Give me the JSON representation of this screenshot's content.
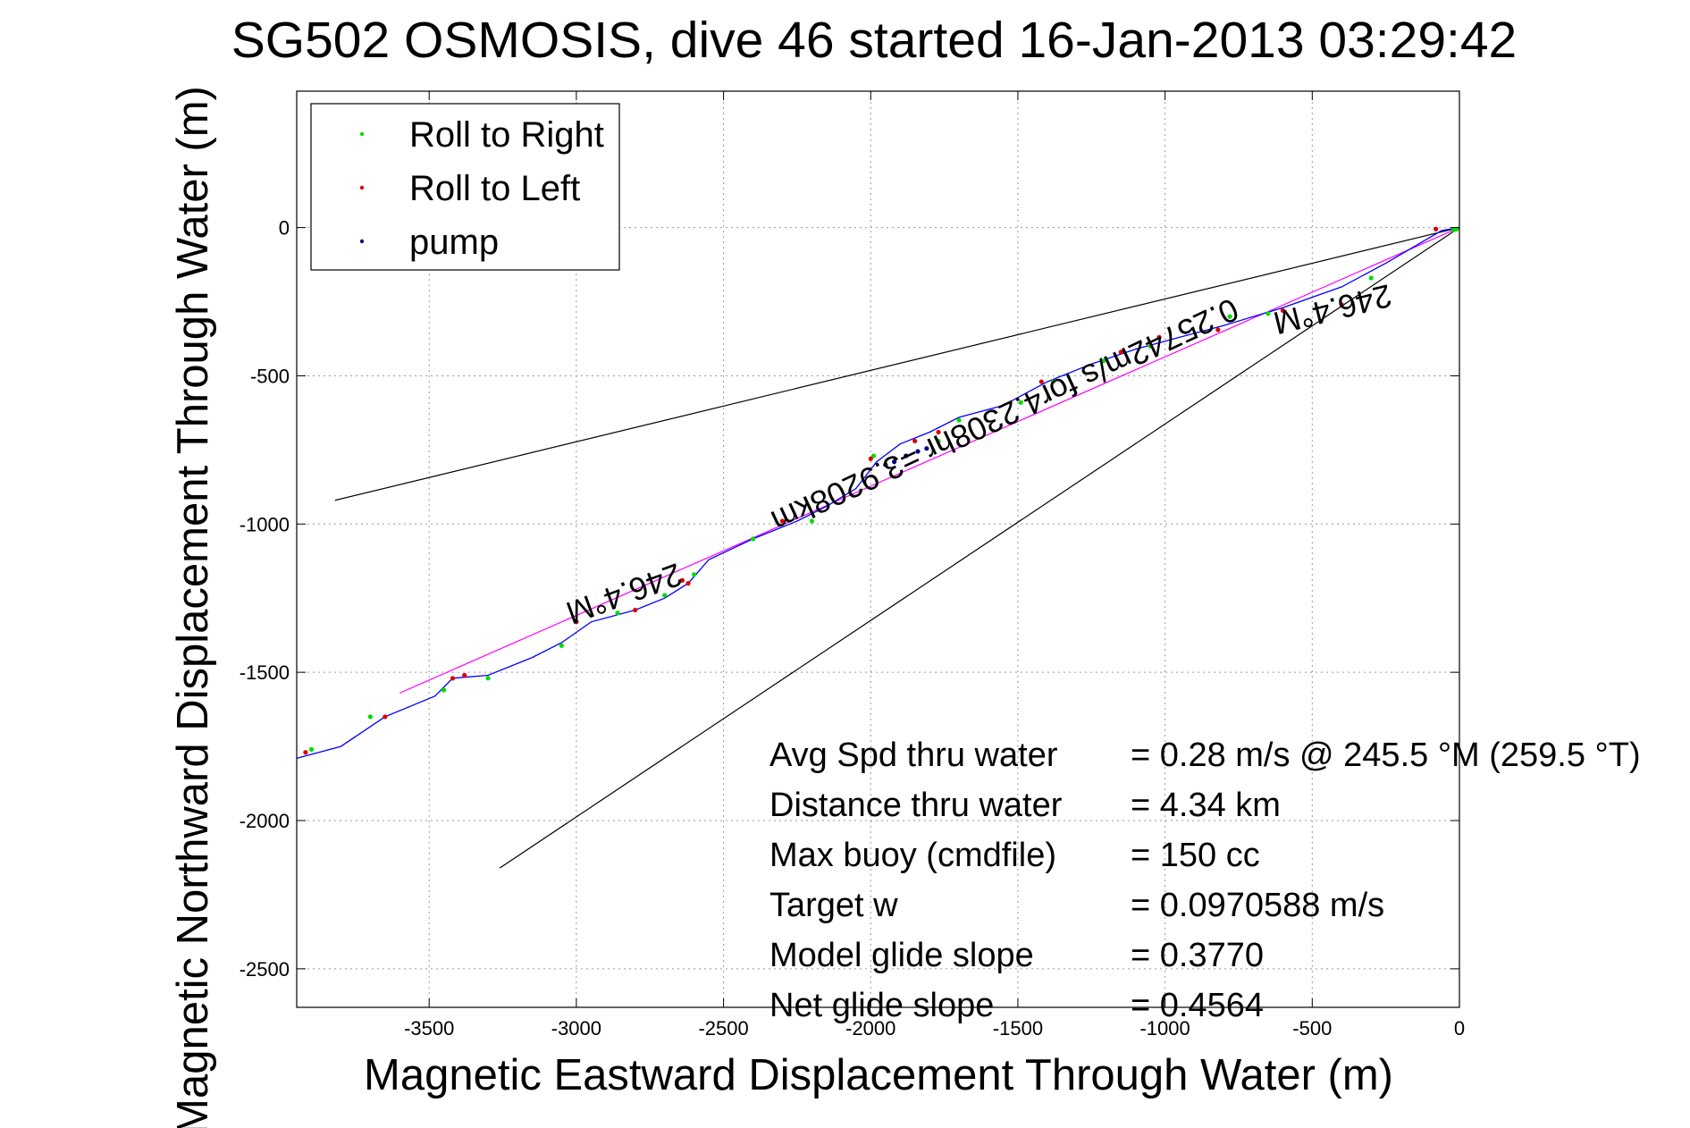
{
  "chart_data": {
    "type": "scatter",
    "title": "SG502 OSMOSIS, dive 46 started 16-Jan-2013 03:29:42",
    "xlabel": "Magnetic Eastward Displacement Through Water (m)",
    "ylabel": "Magnetic Northward Displacement Through Water (m)",
    "xlim": [
      -3950,
      0
    ],
    "ylim": [
      -2630,
      460
    ],
    "xticks": [
      -3500,
      -3000,
      -2500,
      -2000,
      -1500,
      -1000,
      -500,
      0
    ],
    "yticks": [
      0,
      -500,
      -1000,
      -1500,
      -2000,
      -2500
    ],
    "grid": true,
    "legend_position": "top-left",
    "legend": [
      {
        "label": "Roll to Right",
        "color": "#00dd00"
      },
      {
        "label": "Roll to Left",
        "color": "#dd0000"
      },
      {
        "label": "pump",
        "color": "#000080"
      }
    ],
    "track": {
      "name": "Dive track",
      "color": "#0000ff",
      "x": [
        0,
        -60,
        -250,
        -400,
        -600,
        -800,
        -950,
        -1100,
        -1250,
        -1400,
        -1550,
        -1700,
        -1800,
        -1900,
        -1980,
        -2050,
        -2150,
        -2250,
        -2400,
        -2550,
        -2620,
        -2700,
        -2800,
        -2950,
        -3050,
        -3150,
        -3300,
        -3420,
        -3480,
        -3650,
        -3800,
        -3950
      ],
      "y": [
        0,
        -10,
        -120,
        -200,
        -270,
        -330,
        -370,
        -410,
        -460,
        -520,
        -600,
        -640,
        -690,
        -730,
        -790,
        -880,
        -940,
        -990,
        -1050,
        -1120,
        -1200,
        -1250,
        -1290,
        -1330,
        -1400,
        -1450,
        -1510,
        -1520,
        -1580,
        -1650,
        -1750,
        -1790
      ]
    },
    "roll_right": {
      "x": [
        -10,
        -20,
        -300,
        -650,
        -780,
        -1050,
        -1210,
        -1380,
        -1490,
        -1700,
        -1770,
        -1990,
        -2200,
        -2400,
        -2600,
        -2700,
        -2860,
        -3050,
        -3300,
        -3450,
        -3700,
        -3900
      ],
      "y": [
        -5,
        -8,
        -170,
        -290,
        -300,
        -400,
        -450,
        -520,
        -590,
        -650,
        -720,
        -770,
        -990,
        -1050,
        -1170,
        -1240,
        -1300,
        -1410,
        -1520,
        -1560,
        -1650,
        -1760
      ],
      "symbol_color": "#00dd00"
    },
    "roll_left": {
      "x": [
        -80,
        -400,
        -600,
        -820,
        -1020,
        -1150,
        -1420,
        -1770,
        -1850,
        -2000,
        -2300,
        -2620,
        -2640,
        -2800,
        -3000,
        -3380,
        -3420,
        -3650,
        -3920
      ],
      "y": [
        -5,
        -260,
        -280,
        -345,
        -370,
        -420,
        -520,
        -690,
        -720,
        -780,
        -990,
        -1200,
        -1190,
        -1290,
        -1330,
        -1510,
        -1520,
        -1650,
        -1770
      ],
      "symbol_color": "#dd0000"
    },
    "pump": {
      "x": [
        -1950,
        -1920,
        -1880,
        -1840,
        -1810
      ],
      "y": [
        -800,
        -790,
        -770,
        -755,
        -745
      ],
      "symbol_color": "#000080"
    },
    "reference_lines": [
      {
        "name": "heading",
        "color": "#ff00ff",
        "x": [
          0,
          -3600
        ],
        "y": [
          0,
          -1570
        ]
      },
      {
        "name": "cone upper",
        "color": "#000000",
        "x": [
          0,
          -3820
        ],
        "y": [
          0,
          -920
        ]
      },
      {
        "name": "cone lower",
        "color": "#000000",
        "x": [
          0,
          -3260
        ],
        "y": [
          0,
          -2160
        ]
      }
    ],
    "annotations": [
      {
        "text": "246.4°M",
        "at_x": -440,
        "at_y": -240,
        "angle_deg": 166
      },
      {
        "text": "0.25742m/s for4.2308hr =3.9208km",
        "at_x": -1560,
        "at_y": -600,
        "angle_deg": 155
      },
      {
        "text": "246.4°M",
        "at_x": -2850,
        "at_y": -1200,
        "angle_deg": 160
      }
    ],
    "stats": [
      {
        "label": "Avg Spd thru water",
        "value": "=  0.28 m/s @ 245.5 °M (259.5 °T)"
      },
      {
        "label": "Distance thru water",
        "value": "=  4.34 km"
      },
      {
        "label": "Max buoy (cmdfile)",
        "value": "= 150 cc"
      },
      {
        "label": "Target w",
        "value": "= 0.0970588 m/s"
      },
      {
        "label": "Model glide slope",
        "value": "= 0.3770"
      },
      {
        "label": "Net glide slope",
        "value": "= 0.4564"
      }
    ]
  }
}
